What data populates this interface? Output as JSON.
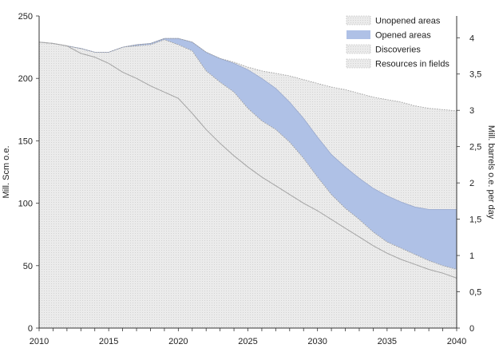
{
  "chart_data": {
    "type": "area",
    "title": "",
    "ylabel": "Mill. Scm o.e.",
    "y2label": "Mill. barrels o.e. per day",
    "xlim": [
      2010,
      2040
    ],
    "ylim": [
      0,
      250
    ],
    "y2lim": [
      0,
      4.3
    ],
    "grid": false,
    "legend_position": "top-right",
    "x_ticks": [
      "2010",
      "2015",
      "2020",
      "2025",
      "2030",
      "2035",
      "2040"
    ],
    "y_ticks": [
      "0",
      "50",
      "100",
      "150",
      "200",
      "250"
    ],
    "y2_ticks": [
      "0",
      "0,5",
      "1",
      "1,5",
      "2",
      "2,5",
      "3",
      "3,5",
      "4"
    ],
    "x": [
      2010,
      2011,
      2012,
      2013,
      2014,
      2015,
      2016,
      2017,
      2018,
      2019,
      2020,
      2021,
      2022,
      2023,
      2024,
      2025,
      2026,
      2027,
      2028,
      2029,
      2030,
      2031,
      2032,
      2033,
      2034,
      2035,
      2036,
      2037,
      2038,
      2039,
      2040
    ],
    "series": [
      {
        "name": "Resources in fields",
        "color": "#ebebeb",
        "pattern": "dotted",
        "cumulative_values": [
          229,
          228,
          226,
          220,
          217,
          212,
          205,
          200,
          194,
          189,
          184,
          172,
          159,
          148,
          138,
          129,
          121,
          114,
          107,
          100,
          94,
          87,
          80,
          73,
          66,
          60,
          55,
          51,
          47,
          44,
          40
        ]
      },
      {
        "name": "Discoveries",
        "color": "#ebebeb",
        "pattern": "dotted",
        "cumulative_values": [
          229,
          228,
          226,
          224,
          221,
          221,
          225,
          226,
          227,
          231,
          227,
          222,
          206,
          197,
          189,
          176,
          166,
          159,
          149,
          136,
          121,
          107,
          96,
          87,
          77,
          69,
          64,
          59,
          54,
          50,
          47
        ]
      },
      {
        "name": "Opened areas",
        "color": "#afc1e6",
        "pattern": "solid",
        "cumulative_values": [
          229,
          228,
          226,
          224,
          221,
          221,
          225,
          227,
          228,
          232,
          232,
          229,
          221,
          216,
          212,
          207,
          200,
          192,
          181,
          168,
          153,
          139,
          129,
          120,
          112,
          106,
          101,
          97,
          95,
          95,
          95
        ]
      },
      {
        "name": "Unopened areas",
        "color": "#ebebeb",
        "pattern": "dotted",
        "cumulative_values": [
          229,
          228,
          226,
          224,
          221,
          221,
          225,
          227,
          228,
          232,
          232,
          229,
          221,
          216,
          213,
          209,
          206,
          204,
          202,
          199,
          196,
          193,
          191,
          188,
          185,
          183,
          181,
          178,
          176,
          175,
          174
        ]
      }
    ]
  }
}
